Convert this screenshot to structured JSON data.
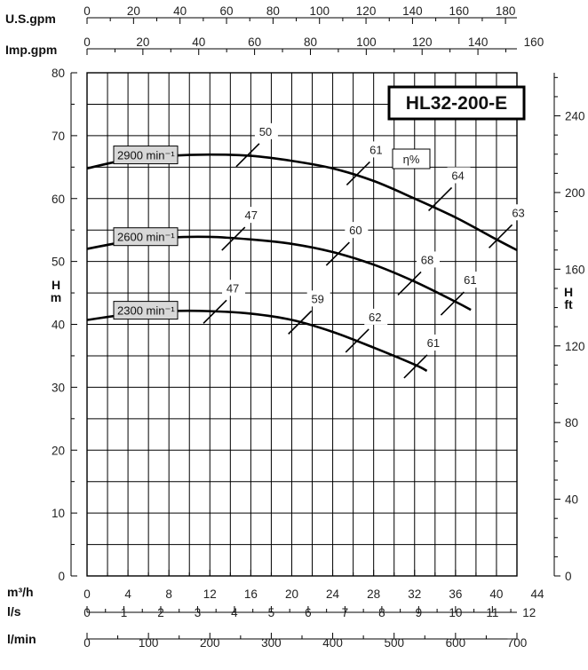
{
  "chart_data": {
    "type": "line",
    "title": "HL32-200-E",
    "ylabel": "H m",
    "ylabel_right": "H ft",
    "eta_label": "η%",
    "xlim": [
      0,
      42
    ],
    "ylim": [
      0,
      80
    ],
    "grid": true,
    "axes": {
      "top": [
        {
          "label": "U.S.gpm",
          "ticks": [
            0,
            20,
            40,
            60,
            80,
            100,
            120,
            140,
            160,
            180
          ],
          "per_m3h": 4.403
        },
        {
          "label": "Imp.gpm",
          "ticks": [
            0,
            20,
            40,
            60,
            80,
            100,
            120,
            140,
            160
          ],
          "per_m3h": 3.666
        }
      ],
      "bottom": [
        {
          "label": "m³/h",
          "ticks": [
            0,
            4,
            8,
            12,
            16,
            20,
            24,
            28,
            32,
            36,
            40,
            44
          ],
          "per_m3h": 1
        },
        {
          "label": "l/s",
          "ticks": [
            0,
            1,
            2,
            3,
            4,
            5,
            6,
            7,
            8,
            9,
            10,
            11,
            12
          ],
          "per_m3h": 0.27778
        },
        {
          "label": "l/min",
          "ticks": [
            0,
            100,
            200,
            300,
            400,
            500,
            600,
            700
          ],
          "per_m3h": 16.667
        }
      ],
      "left_ticks": [
        0,
        10,
        20,
        30,
        40,
        50,
        60,
        70,
        80
      ],
      "right_ticks": [
        0,
        40,
        80,
        120,
        160,
        200,
        240
      ]
    },
    "series": [
      {
        "name": "2900 min⁻¹",
        "x": [
          0,
          4,
          8,
          12,
          16,
          20,
          24,
          28,
          32,
          36,
          40,
          42
        ],
        "y": [
          64.8,
          66.2,
          66.8,
          67.0,
          66.8,
          66.0,
          64.8,
          62.8,
          60.0,
          57.0,
          53.5,
          51.8
        ],
        "efficiency": [
          {
            "x": 15.7,
            "y": 66.9,
            "label": "50"
          },
          {
            "x": 26.5,
            "y": 64.0,
            "label": "61"
          },
          {
            "x": 34.5,
            "y": 59.9,
            "label": "64"
          },
          {
            "x": 40.4,
            "y": 54.0,
            "label": "63"
          }
        ]
      },
      {
        "name": "2600 min⁻¹",
        "x": [
          0,
          4,
          8,
          12,
          16,
          20,
          24,
          28,
          32,
          36,
          37.5
        ],
        "y": [
          52.0,
          53.2,
          53.8,
          53.9,
          53.5,
          52.8,
          51.5,
          49.5,
          46.8,
          43.6,
          42.3
        ],
        "efficiency": [
          {
            "x": 14.3,
            "y": 53.6,
            "label": "47"
          },
          {
            "x": 24.5,
            "y": 51.2,
            "label": "60"
          },
          {
            "x": 31.5,
            "y": 46.5,
            "label": "68"
          },
          {
            "x": 35.7,
            "y": 43.3,
            "label": "61"
          }
        ]
      },
      {
        "name": "2300 min⁻¹",
        "x": [
          0,
          4,
          8,
          12,
          16,
          20,
          24,
          28,
          32,
          33.2
        ],
        "y": [
          40.7,
          41.6,
          42.1,
          42.1,
          41.7,
          40.7,
          38.8,
          36.3,
          33.6,
          32.6
        ],
        "efficiency": [
          {
            "x": 12.5,
            "y": 42.0,
            "label": "47"
          },
          {
            "x": 20.8,
            "y": 40.3,
            "label": "59"
          },
          {
            "x": 26.4,
            "y": 37.4,
            "label": "62"
          },
          {
            "x": 32.1,
            "y": 33.3,
            "label": "61"
          }
        ]
      }
    ]
  }
}
